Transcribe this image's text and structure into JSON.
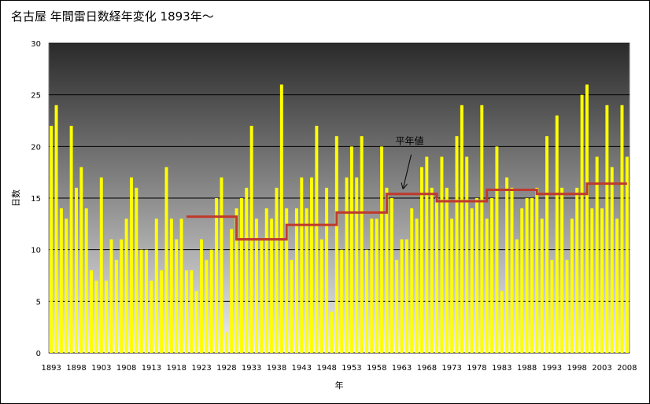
{
  "chart_data": {
    "type": "bar",
    "title": "名古屋  年間雷日数経年変化  1893年〜",
    "xlabel": "年",
    "ylabel": "日数",
    "ylim": [
      0,
      30
    ],
    "yticks": [
      0,
      5,
      10,
      15,
      20,
      25,
      30
    ],
    "xtick_labels": [
      "1893",
      "1898",
      "1903",
      "1908",
      "1913",
      "1918",
      "1923",
      "1928",
      "1933",
      "1938",
      "1943",
      "1948",
      "1953",
      "1958",
      "1963",
      "1968",
      "1973",
      "1978",
      "1983",
      "1988",
      "1993",
      "1998",
      "2003",
      "2008"
    ],
    "grid": true,
    "bar_color": "#ffff00",
    "background_gradient": [
      "#2a2a2a",
      "#f0f0f0"
    ],
    "x_start": 1893,
    "years": [
      1893,
      1894,
      1895,
      1896,
      1897,
      1898,
      1899,
      1900,
      1901,
      1902,
      1903,
      1904,
      1905,
      1906,
      1907,
      1908,
      1909,
      1910,
      1911,
      1912,
      1913,
      1914,
      1915,
      1916,
      1917,
      1918,
      1919,
      1920,
      1921,
      1922,
      1923,
      1924,
      1925,
      1926,
      1927,
      1928,
      1929,
      1930,
      1931,
      1932,
      1933,
      1934,
      1935,
      1936,
      1937,
      1938,
      1939,
      1940,
      1941,
      1942,
      1943,
      1944,
      1945,
      1946,
      1947,
      1948,
      1949,
      1950,
      1951,
      1952,
      1953,
      1954,
      1955,
      1956,
      1957,
      1958,
      1959,
      1960,
      1961,
      1962,
      1963,
      1964,
      1965,
      1966,
      1967,
      1968,
      1969,
      1970,
      1971,
      1972,
      1973,
      1974,
      1975,
      1976,
      1977,
      1978,
      1979,
      1980,
      1981,
      1982,
      1983,
      1984,
      1985,
      1986,
      1987,
      1988,
      1989,
      1990,
      1991,
      1992,
      1993,
      1994,
      1995,
      1996,
      1997,
      1998,
      1999,
      2000,
      2001,
      2002,
      2003,
      2004,
      2005,
      2006,
      2007,
      2008
    ],
    "values": [
      22,
      24,
      14,
      13,
      22,
      16,
      18,
      14,
      8,
      7,
      17,
      7,
      11,
      9,
      11,
      13,
      17,
      16,
      10,
      10,
      7,
      13,
      8,
      18,
      13,
      11,
      13,
      8,
      8,
      6,
      11,
      9,
      10,
      15,
      17,
      2,
      12,
      14,
      15,
      16,
      22,
      13,
      11,
      14,
      13,
      16,
      26,
      14,
      9,
      14,
      17,
      14,
      17,
      22,
      11,
      16,
      4,
      21,
      10,
      17,
      20,
      17,
      21,
      10,
      13,
      13,
      20,
      16,
      15,
      9,
      11,
      11,
      14,
      13,
      18,
      19,
      16,
      15,
      19,
      16,
      13,
      21,
      24,
      19,
      14,
      15,
      24,
      13,
      15,
      20,
      6,
      17,
      16,
      11,
      14,
      15,
      15,
      16,
      13,
      21,
      9,
      23,
      16,
      9,
      13,
      16,
      25,
      26,
      14,
      19,
      14,
      24,
      18,
      13,
      24,
      19
    ],
    "normal_series": {
      "name": "平年値",
      "color": "#c0392b",
      "segments": [
        {
          "from": 1920,
          "to": 1930,
          "value": 13.2
        },
        {
          "from": 1930,
          "to": 1940,
          "value": 11.0
        },
        {
          "from": 1940,
          "to": 1950,
          "value": 12.4
        },
        {
          "from": 1950,
          "to": 1960,
          "value": 13.6
        },
        {
          "from": 1960,
          "to": 1970,
          "value": 15.4
        },
        {
          "from": 1970,
          "to": 1980,
          "value": 14.7
        },
        {
          "from": 1980,
          "to": 1990,
          "value": 15.8
        },
        {
          "from": 1990,
          "to": 2000,
          "value": 15.4
        },
        {
          "from": 2000,
          "to": 2008,
          "value": 16.4
        }
      ]
    },
    "annotation": {
      "text": "平年値",
      "arrow_to_year": 1963,
      "arrow_to_value": 15.4
    }
  }
}
